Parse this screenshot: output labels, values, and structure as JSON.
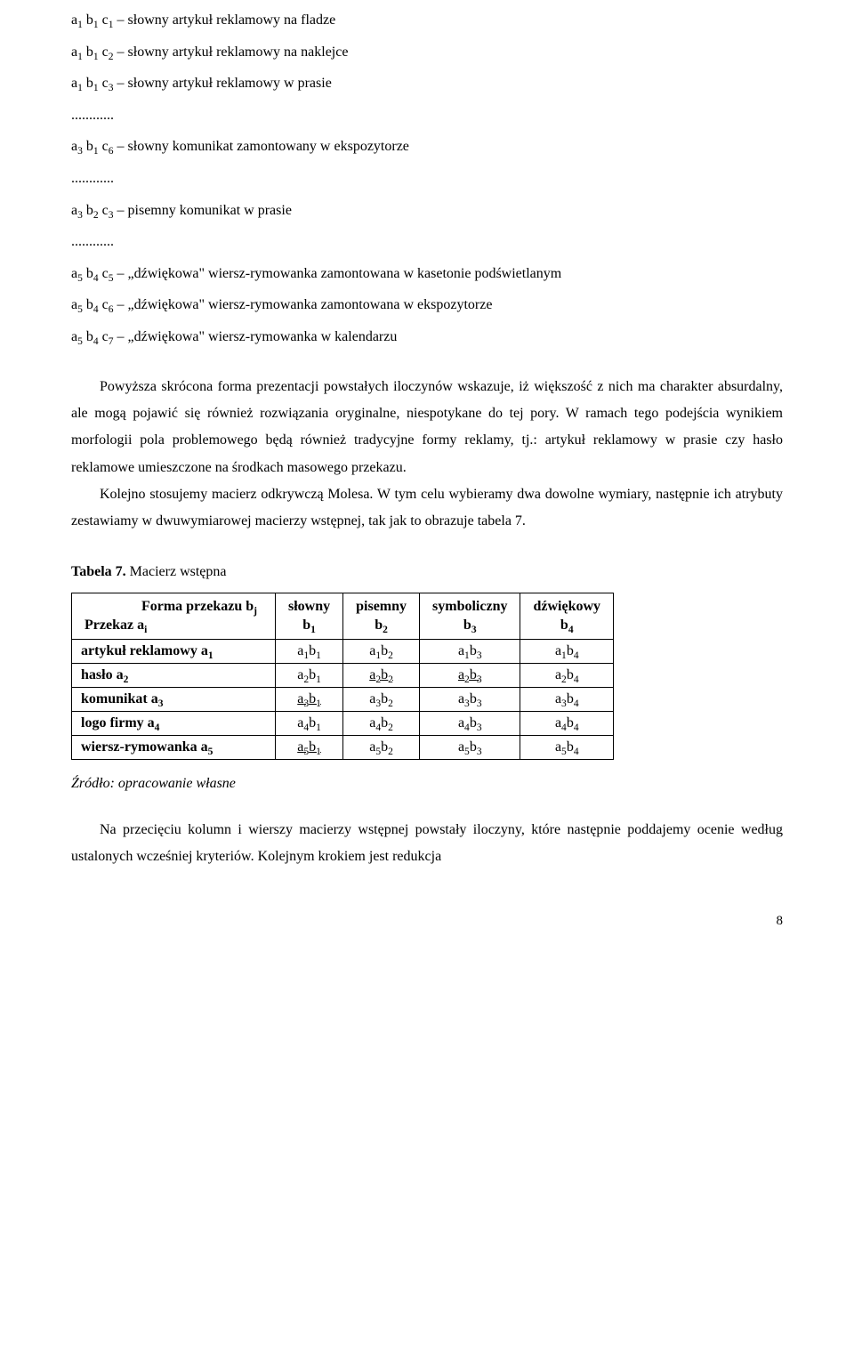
{
  "list": {
    "l1": "a₁ b₁ c₁ – słowny artykuł reklamowy na fladze",
    "l2": "a₁ b₁ c₂ – słowny artykuł reklamowy na naklejce",
    "l3": "a₁ b₁ c₃ – słowny artykuł reklamowy w prasie",
    "d1": "............",
    "l4": "a₃ b₁ c₆ – słowny komunikat zamontowany w ekspozytorze",
    "d2": "............",
    "l5": "a₃ b₂ c₃ – pisemny komunikat w prasie",
    "d3": "............",
    "l6": "a₅ b₄ c₅ – „dźwiękowa\" wiersz-rymowanka zamontowana w kasetonie podświetlanym",
    "l7": "a₅ b₄ c₆ – „dźwiękowa\" wiersz-rymowanka zamontowana w ekspozytorze",
    "l8": "a₅ b₄ c₇ – „dźwiękowa\" wiersz-rymowanka w kalendarzu"
  },
  "para": {
    "p1": "Powyższa skrócona forma prezentacji powstałych iloczynów wskazuje, iż większość z nich ma charakter absurdalny, ale mogą pojawić się również rozwiązania oryginalne, niespotykane do tej pory. W ramach tego podejścia wynikiem morfologii pola problemowego będą również tradycyjne formy reklamy, tj.: artykuł reklamowy w prasie czy hasło reklamowe umieszczone na środkach masowego przekazu.",
    "p2": "Kolejno stosujemy macierz odkrywczą Molesa. W tym celu wybieramy dwa dowolne wymiary, następnie ich atrybuty zestawiamy w dwuwymiarowej macierzy wstępnej, tak jak to obrazuje tabela 7."
  },
  "tableCaption": {
    "bold": "Tabela 7.",
    "rest": " Macierz wstępna"
  },
  "table": {
    "colhead_label": {
      "line1": "Forma przekazu bⱼ",
      "line2": "Przekaz aᵢ"
    },
    "cols": [
      {
        "name": "słowny",
        "sym": "b₁"
      },
      {
        "name": "pisemny",
        "sym": "b₂"
      },
      {
        "name": "symboliczny",
        "sym": "b₃"
      },
      {
        "name": "dźwiękowy",
        "sym": "b₄"
      }
    ],
    "rows": [
      {
        "label": "artykuł reklamowy a₁",
        "cells": [
          {
            "v": "a₁b₁",
            "u": false
          },
          {
            "v": "a₁b₂",
            "u": false
          },
          {
            "v": "a₁b₃",
            "u": false
          },
          {
            "v": "a₁b₄",
            "u": false
          }
        ]
      },
      {
        "label": "hasło a₂",
        "cells": [
          {
            "v": "a₂b₁",
            "u": false
          },
          {
            "v": "a₂b₂",
            "u": true
          },
          {
            "v": "a₂b₃",
            "u": true
          },
          {
            "v": "a₂b₄",
            "u": false
          }
        ]
      },
      {
        "label": "komunikat a₃",
        "cells": [
          {
            "v": "a₃b₁",
            "u": true
          },
          {
            "v": "a₃b₂",
            "u": false
          },
          {
            "v": "a₃b₃",
            "u": false
          },
          {
            "v": "a₃b₄",
            "u": false
          }
        ]
      },
      {
        "label": "logo firmy a₄",
        "cells": [
          {
            "v": "a₄b₁",
            "u": false
          },
          {
            "v": "a₄b₂",
            "u": false
          },
          {
            "v": "a₄b₃",
            "u": false
          },
          {
            "v": "a₄b₄",
            "u": false
          }
        ]
      },
      {
        "label": "wiersz-rymowanka a₅",
        "cells": [
          {
            "v": "a₅b₁",
            "u": true
          },
          {
            "v": "a₅b₂",
            "u": false
          },
          {
            "v": "a₅b₃",
            "u": false
          },
          {
            "v": "a₅b₄",
            "u": false
          }
        ]
      }
    ]
  },
  "source": "Źródło: opracowanie własne",
  "footer": "Na przecięciu kolumn i wierszy macierzy wstępnej powstały iloczyny, które następnie poddajemy ocenie według ustalonych wcześniej kryteriów. Kolejnym krokiem jest redukcja",
  "pageNumber": "8"
}
